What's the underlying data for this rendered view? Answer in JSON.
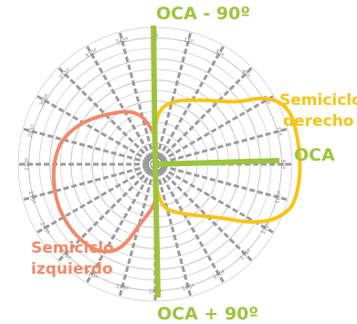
{
  "labels": {
    "top": "OCA - 90º",
    "bottom": "OCA + 90º",
    "right": "OCA",
    "right_semicircle_line1": "Semiciclo",
    "right_semicircle_line2": "derecho",
    "left_semicircle_line1": "Semiciclo",
    "left_semicircle_line2": "izquierdo"
  },
  "angle_labels": [
    "0º",
    "15º",
    "30º",
    "45º",
    "60º",
    "75º",
    "90º",
    "105º",
    "120º",
    "135º",
    "150º",
    "165º",
    "180º",
    "195º",
    "210º",
    "225º",
    "240º",
    "255º",
    "270º",
    "285º",
    "300º",
    "315º",
    "330º",
    "345º"
  ],
  "colors": {
    "grid_circle": "#c8c8c8",
    "spoke": "#9a9a9a",
    "oca_axis": "#9dc43e",
    "right_semicircle": "#f5c518",
    "left_semicircle": "#f08a6a",
    "label_text": "#888888"
  }
}
